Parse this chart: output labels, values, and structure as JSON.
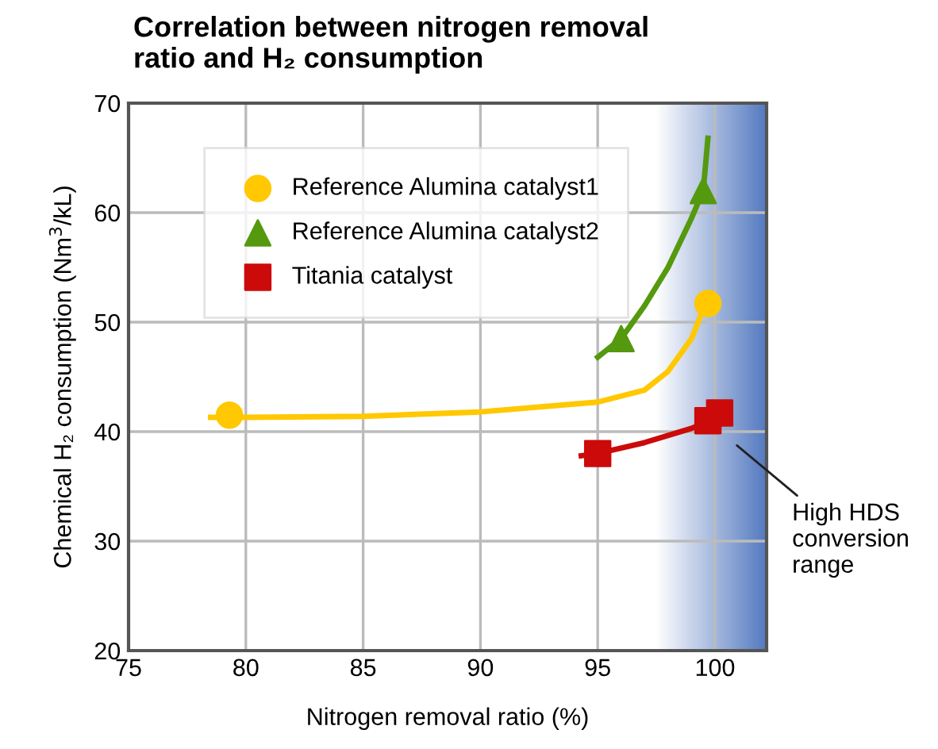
{
  "chart_data": {
    "type": "scatter",
    "title": "Correlation between nitrogen removal\nratio and H₂ consumption",
    "xlabel": "Nitrogen removal ratio (%)",
    "ylabel": "Chemical H₂ consumption (Nm$^{3}$/kL)",
    "xlim": [
      75,
      102.2
    ],
    "xticks": [
      75,
      80,
      85,
      90,
      95,
      100
    ],
    "ylim": [
      20,
      70
    ],
    "yticks": [
      20,
      30,
      40,
      50,
      60,
      70
    ],
    "grid": true,
    "legend": "top left",
    "bands": [
      {
        "axis": "x",
        "from": 97.5,
        "to": 102.2,
        "label": "High HDS\nconversion\nrange",
        "color": "#4a72bd"
      }
    ],
    "series": [
      {
        "name": "Reference Alumina catalyst1",
        "color": "#ffc800",
        "marker": "circle",
        "x": [
          79.3,
          99.7
        ],
        "values": [
          41.5,
          51.7
        ]
      },
      {
        "name": "Reference Alumina catalyst2",
        "color": "#55990f",
        "marker": "triangle",
        "x": [
          96,
          99.5
        ],
        "values": [
          48.5,
          62
        ]
      },
      {
        "name": "Titania catalyst",
        "color": "#cc0a0a",
        "marker": "square",
        "x": [
          95,
          99.7,
          100.2
        ],
        "values": [
          38,
          41,
          41.7
        ]
      },
      {
        "type": "line",
        "color": "#ffc800",
        "x": [
          78.5,
          80,
          85,
          90,
          95,
          97,
          98,
          99,
          99.6
        ],
        "values": [
          41.3,
          41.3,
          41.4,
          41.8,
          42.7,
          43.8,
          45.5,
          48.5,
          51.7
        ]
      },
      {
        "type": "line",
        "color": "#55990f",
        "x": [
          95,
          96,
          97,
          98,
          99,
          99.5,
          99.7
        ],
        "values": [
          46.8,
          48.5,
          51.5,
          55,
          59.5,
          62,
          66.8
        ]
      },
      {
        "type": "line",
        "color": "#cc0a0a",
        "x": [
          94.3,
          95,
          97,
          99,
          100
        ],
        "values": [
          37.8,
          38,
          39,
          40.3,
          41.2
        ]
      }
    ]
  }
}
